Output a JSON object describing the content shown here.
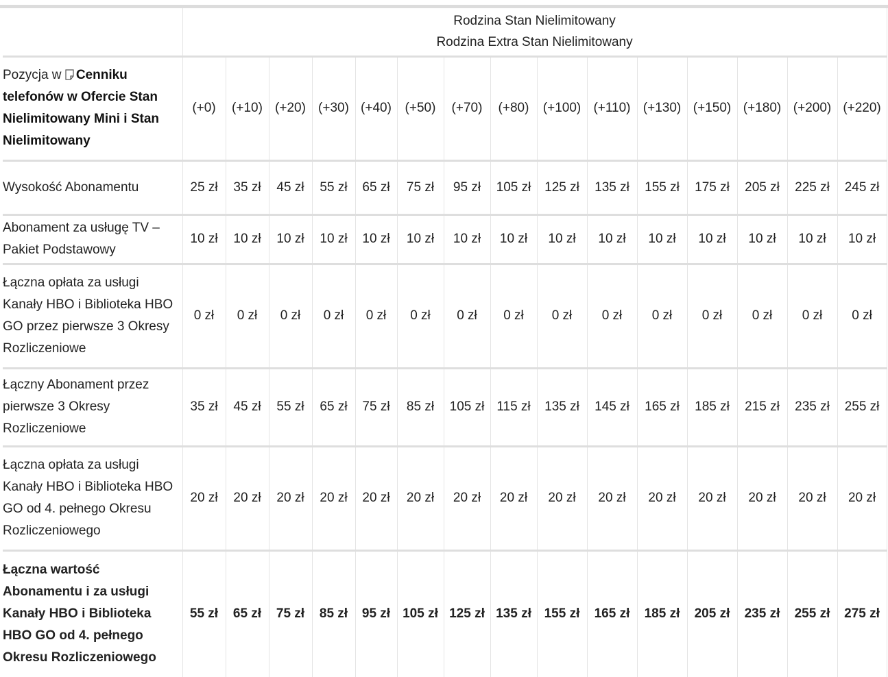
{
  "header": {
    "group_line_1": "Rodzina Stan Nielimitowany",
    "group_line_2": "Rodzina Extra Stan Nielimitowany"
  },
  "position_row": {
    "label_prefix": "Pozycja w",
    "label_link": "Cenniku telefonów w Ofercie Stan Nielimitowany Mini i Stan Nielimitowany",
    "icon": "document-icon",
    "values": [
      "(+0)",
      "(+10)",
      "(+20)",
      "(+30)",
      "(+40)",
      "(+50)",
      "(+70)",
      "(+80)",
      "(+100)",
      "(+110)",
      "(+130)",
      "(+150)",
      "(+180)",
      "(+200)",
      "(+220)"
    ]
  },
  "rows": [
    {
      "label": "Wysokość Abonamentu",
      "values": [
        "25 zł",
        "35 zł",
        "45 zł",
        "55 zł",
        "65 zł",
        "75 zł",
        "95 zł",
        "105 zł",
        "125 zł",
        "135 zł",
        "155 zł",
        "175 zł",
        "205 zł",
        "225 zł",
        "245 zł"
      ]
    },
    {
      "label": "Abonament za usługę TV – Pakiet Podstawowy",
      "values": [
        "10 zł",
        "10 zł",
        "10 zł",
        "10 zł",
        "10 zł",
        "10 zł",
        "10 zł",
        "10 zł",
        "10 zł",
        "10 zł",
        "10 zł",
        "10 zł",
        "10 zł",
        "10 zł",
        "10 zł"
      ]
    },
    {
      "label": "Łączna opłata za usługi Kanały HBO i Biblioteka HBO GO przez pierwsze 3 Okresy Rozliczeniowe",
      "values": [
        "0 zł",
        "0 zł",
        "0 zł",
        "0 zł",
        "0 zł",
        "0 zł",
        "0 zł",
        "0 zł",
        "0 zł",
        "0 zł",
        "0 zł",
        "0 zł",
        "0 zł",
        "0 zł",
        "0 zł"
      ]
    },
    {
      "label": "Łączny Abonament przez pierwsze 3 Okresy Rozliczeniowe",
      "values": [
        "35 zł",
        "45 zł",
        "55 zł",
        "65 zł",
        "75 zł",
        "85 zł",
        "105 zł",
        "115 zł",
        "135 zł",
        "145 zł",
        "165 zł",
        "185 zł",
        "215 zł",
        "235 zł",
        "255 zł"
      ]
    },
    {
      "label": "Łączna opłata za usługi Kanały HBO i Biblioteka HBO GO od 4. pełnego Okresu Rozliczeniowego",
      "values": [
        "20 zł",
        "20 zł",
        "20 zł",
        "20 zł",
        "20 zł",
        "20 zł",
        "20 zł",
        "20 zł",
        "20 zł",
        "20 zł",
        "20 zł",
        "20 zł",
        "20 zł",
        "20 zł",
        "20 zł"
      ]
    },
    {
      "label": "Łączna wartość Abonamentu i za usługi Kanały HBO i Biblioteka HBO GO od 4. pełnego Okresu Rozliczeniowego",
      "values": [
        "55 zł",
        "65 zł",
        "75 zł",
        "85 zł",
        "95 zł",
        "105 zł",
        "125 zł",
        "135 zł",
        "155 zł",
        "165 zł",
        "185 zł",
        "205 zł",
        "235 zł",
        "255 zł",
        "275 zł"
      ],
      "bold": true
    }
  ]
}
